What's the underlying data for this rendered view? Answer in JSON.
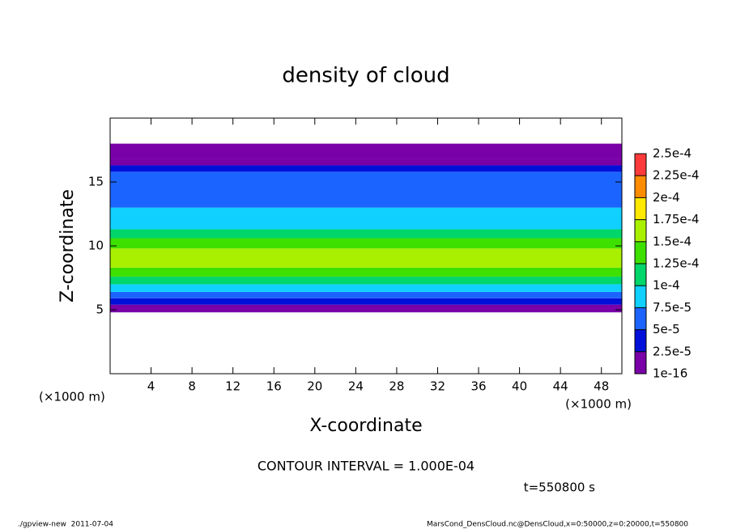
{
  "chart_data": {
    "type": "heatmap",
    "title": "density of cloud",
    "x_label": "X-coordinate",
    "y_label": "Z-coordinate",
    "x_unit": "(×1000 m)",
    "xlim": [
      0,
      50
    ],
    "xticks": [
      4,
      8,
      12,
      16,
      20,
      24,
      28,
      32,
      36,
      40,
      44,
      48
    ],
    "ylim": [
      0,
      20
    ],
    "yticks": [
      5,
      10,
      15
    ],
    "z_edges": [
      4.8,
      5.4,
      5.9,
      6.4,
      7,
      7.6,
      8.3,
      9.8,
      10.6,
      11.3,
      13,
      15.8,
      16.3,
      16.8,
      18
    ],
    "values": [
      1e-05,
      3.5e-05,
      6e-05,
      9e-05,
      0.00011,
      0.000135,
      0.00016,
      0.000135,
      0.00011,
      8.5e-05,
      6e-05,
      4e-05,
      2e-05,
      1e-05
    ],
    "levels": [
      {
        "value": 1e-16,
        "label": "1e-16"
      },
      {
        "value": 2.5e-05,
        "label": "2.5e-5"
      },
      {
        "value": 5e-05,
        "label": "5e-5"
      },
      {
        "value": 7.5e-05,
        "label": "7.5e-5"
      },
      {
        "value": 0.0001,
        "label": "1e-4"
      },
      {
        "value": 0.000125,
        "label": "1.25e-4"
      },
      {
        "value": 0.00015,
        "label": "1.5e-4"
      },
      {
        "value": 0.000175,
        "label": "1.75e-4"
      },
      {
        "value": 0.0002,
        "label": "2e-4"
      },
      {
        "value": 0.000225,
        "label": "2.25e-4"
      },
      {
        "value": 0.00025,
        "label": "2.5e-4"
      }
    ],
    "colors": [
      "#7a00a8",
      "#0010d8",
      "#1c64ff",
      "#10d0ff",
      "#00d66a",
      "#3ee000",
      "#a8f000",
      "#ffe800",
      "#ff8c00",
      "#ff3a3a"
    ],
    "contour_note": "CONTOUR INTERVAL = 1.000E-04",
    "time_note": "t=550800 s",
    "footer_left": "./gpview-new  2011-07-04",
    "footer_right": "MarsCond_DensCloud.nc@DensCloud,x=0:50000,z=0:20000,t=550800"
  }
}
